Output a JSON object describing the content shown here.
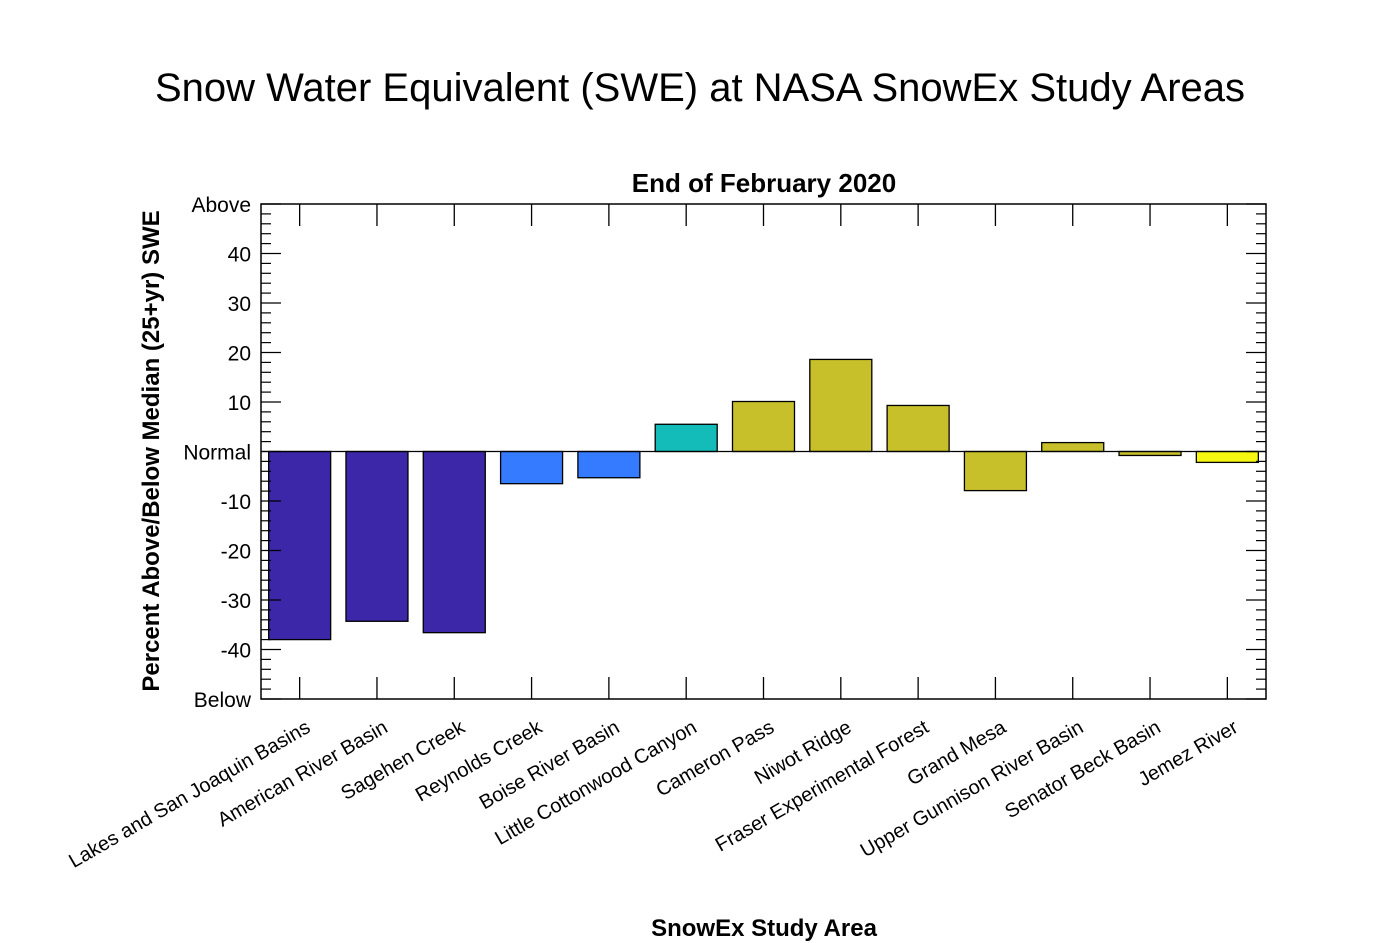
{
  "chart_data": {
    "type": "bar",
    "title": "Snow Water Equivalent (SWE) at NASA SnowEx Study Areas",
    "subtitle": "End of February 2020",
    "xlabel": "SnowEx Study Area",
    "ylabel": "Percent Above/Below Median (25+yr) SWE",
    "ylim": [
      -50,
      50
    ],
    "yticks": [
      {
        "value": 50,
        "label": "Above"
      },
      {
        "value": 40,
        "label": "40"
      },
      {
        "value": 30,
        "label": "30"
      },
      {
        "value": 20,
        "label": "20"
      },
      {
        "value": 10,
        "label": "10"
      },
      {
        "value": 0,
        "label": "Normal"
      },
      {
        "value": -10,
        "label": "-10"
      },
      {
        "value": -20,
        "label": "-20"
      },
      {
        "value": -30,
        "label": "-30"
      },
      {
        "value": -40,
        "label": "-40"
      },
      {
        "value": -50,
        "label": "Below"
      }
    ],
    "categories": [
      "Lakes and San Joaquin Basins",
      "American River Basin",
      "Sagehen Creek",
      "Reynolds Creek",
      "Boise River Basin",
      "Little Cottonwood Canyon",
      "Cameron Pass",
      "Niwot Ridge",
      "Fraser Experimental Forest",
      "Grand Mesa",
      "Upper Gunnison River Basin",
      "Senator Beck Basin",
      "Jemez River"
    ],
    "values": [
      -38.0,
      -34.3,
      -36.6,
      -6.5,
      -5.3,
      5.5,
      10.1,
      18.6,
      9.3,
      -7.9,
      1.8,
      -0.8,
      -2.2
    ],
    "colors": [
      "#3b27a8",
      "#3b27a8",
      "#3b27a8",
      "#347bff",
      "#347bff",
      "#14bcb9",
      "#c8c02a",
      "#c8c02a",
      "#c8c02a",
      "#c8c02a",
      "#c8c02a",
      "#c8c02a",
      "#f6f613"
    ],
    "grid": false,
    "legend": "none"
  }
}
